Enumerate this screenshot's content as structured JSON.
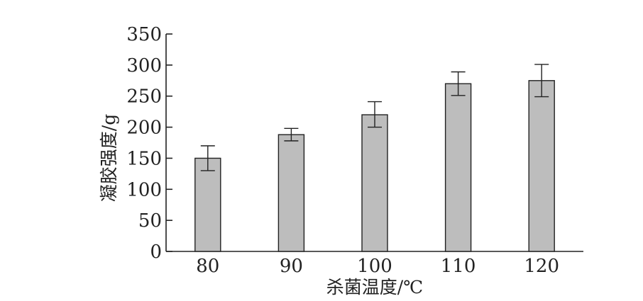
{
  "chart_data": {
    "type": "bar",
    "categories": [
      "80",
      "90",
      "100",
      "110",
      "120"
    ],
    "values": [
      150,
      188,
      220,
      270,
      275
    ],
    "error_low": [
      130,
      178,
      200,
      251,
      249
    ],
    "error_high": [
      170,
      198,
      241,
      289,
      301
    ],
    "xlabel": "杀菌温度/℃",
    "ylabel": "凝胶强度/g",
    "ylim": [
      0,
      350
    ],
    "yticks": [
      0,
      50,
      100,
      150,
      200,
      250,
      300,
      350
    ],
    "bar_color": "#bdbdbd",
    "grid": false,
    "legend": "none"
  }
}
